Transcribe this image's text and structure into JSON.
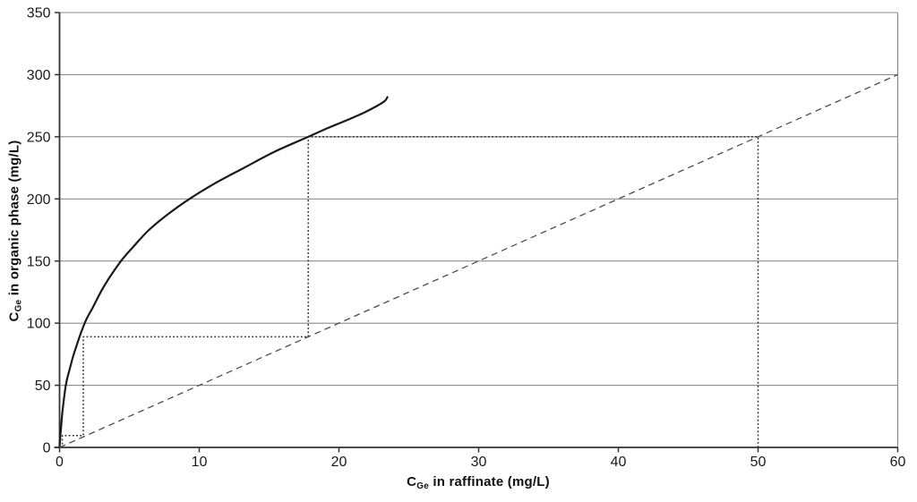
{
  "chart_data": {
    "type": "line",
    "title": "",
    "xlabel": {
      "pre": "C",
      "sub": "Ge",
      "post": " in raffinate (mg/L)"
    },
    "ylabel": {
      "pre": "C",
      "sub": "Ge",
      "post": " in organic phase (mg/L)"
    },
    "xlim": [
      0,
      60
    ],
    "ylim": [
      0,
      350
    ],
    "xticks": [
      0,
      10,
      20,
      30,
      40,
      50,
      60
    ],
    "yticks": [
      0,
      50,
      100,
      150,
      200,
      250,
      300,
      350
    ],
    "grid": "horizontal-only",
    "legend": "none",
    "colors": {
      "curve": "#1a1a1a",
      "operating_line": "#4d4d4d",
      "steps": "#2b2b2b",
      "grid": "#8c8c8c",
      "axis": "#333333",
      "tick_label": "#1a1a1a",
      "background": "#ffffff"
    },
    "series": [
      {
        "name": "equilibrium-curve",
        "kind": "smooth",
        "stroke": "#1a1a1a",
        "width": 2.2,
        "dash": "",
        "points": [
          [
            0,
            0
          ],
          [
            0.08,
            12
          ],
          [
            0.2,
            28
          ],
          [
            0.45,
            50
          ],
          [
            0.75,
            64
          ],
          [
            1.1,
            78
          ],
          [
            1.8,
            100
          ],
          [
            2.4,
            113
          ],
          [
            3.2,
            130
          ],
          [
            4.4,
            150
          ],
          [
            5.4,
            163
          ],
          [
            6.4,
            175
          ],
          [
            7.8,
            188
          ],
          [
            9.3,
            200
          ],
          [
            11.2,
            213
          ],
          [
            13.2,
            225
          ],
          [
            15.4,
            238
          ],
          [
            17.8,
            250
          ],
          [
            19.2,
            257
          ],
          [
            20.5,
            263
          ],
          [
            21.9,
            270
          ],
          [
            22.9,
            276
          ],
          [
            23.3,
            279
          ],
          [
            23.5,
            282.5
          ]
        ]
      },
      {
        "name": "operating-line",
        "kind": "straight",
        "stroke": "#4d4d4d",
        "width": 1.3,
        "dash": "7 5",
        "points": [
          [
            0,
            0
          ],
          [
            60,
            300
          ]
        ]
      },
      {
        "name": "stage-construction-steps",
        "kind": "straight",
        "stroke": "#2b2b2b",
        "width": 1.5,
        "dash": "1.8 2.4",
        "points": [
          [
            50,
            0
          ],
          [
            50,
            250
          ],
          [
            17.8,
            250
          ],
          [
            17.8,
            89
          ],
          [
            1.7,
            89
          ],
          [
            1.7,
            9.5
          ],
          [
            0.2,
            9.5
          ],
          [
            0.2,
            1.5
          ]
        ]
      }
    ]
  }
}
